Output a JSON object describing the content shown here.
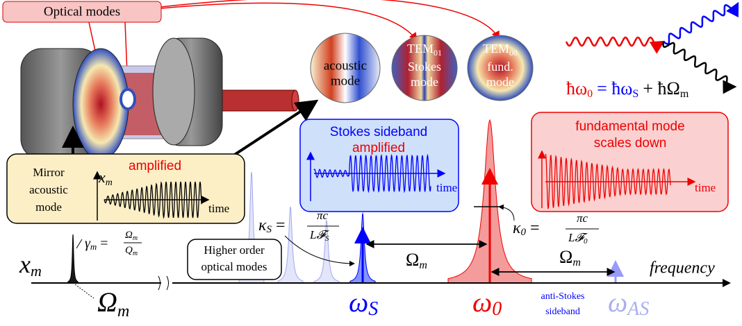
{
  "optical_modes_label": "Optical modes",
  "mode_discs": [
    {
      "lines": [
        "acoustic",
        "mode"
      ]
    },
    {
      "name": "TEM",
      "sub": "01",
      "lines": [
        "Stokes",
        "mode"
      ]
    },
    {
      "name": "TEM",
      "sub": "00",
      "lines": [
        "fund.",
        "mode"
      ]
    }
  ],
  "energy_equation": [
    {
      "text": "ħω",
      "sub": "0"
    },
    {
      "text": "= ħω",
      "sub": "S"
    },
    {
      "text": "+ ħΩ",
      "sub": "m"
    }
  ],
  "mirror_box": {
    "lines": [
      "Mirror",
      "acoustic",
      "mode"
    ],
    "axis": "x",
    "axis_sub": "m",
    "tag": "amplified",
    "time": "time"
  },
  "stokes_box": {
    "title": "Stokes sideband",
    "tag": "amplified",
    "time": "time"
  },
  "fund_box": {
    "lines": [
      "fundamental mode",
      "scales down"
    ],
    "time": "time"
  },
  "spectrum": {
    "xm": {
      "text": "x",
      "sub": "m"
    },
    "gamma": {
      "lhs": "γ",
      "lhs_sub": "m",
      "num": "Ω",
      "num_sub": "m",
      "den": "Q",
      "den_sub": "m"
    },
    "kappa_s": {
      "lhs": "κ",
      "lhs_sub": "S",
      "num": "πc",
      "den": "L𝓕",
      "den_sub": "S"
    },
    "kappa_0": {
      "lhs": "κ",
      "lhs_sub": "0",
      "num": "πc",
      "den": "L𝓕",
      "den_sub": "0"
    },
    "higher_order": [
      "Higher order",
      "optical modes"
    ],
    "omega_m_1": {
      "text": "Ω",
      "sub": "m"
    },
    "omega_m_2": {
      "text": "Ω",
      "sub": "m"
    },
    "omega_m_bottom": {
      "text": "Ω",
      "sub": "m"
    },
    "frequency": "frequency",
    "omega_s": {
      "text": "ω",
      "sub": "S"
    },
    "omega_0": {
      "text": "ω",
      "sub": "0"
    },
    "omega_as": {
      "text": "ω",
      "sub": "AS"
    },
    "anti_stokes": [
      "anti-Stokes",
      "sideband"
    ]
  }
}
